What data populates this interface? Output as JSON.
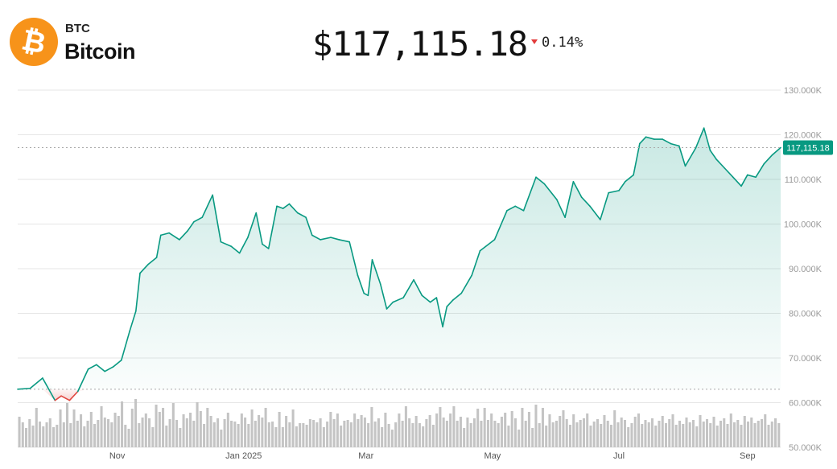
{
  "asset": {
    "ticker": "BTC",
    "name": "Bitcoin",
    "logo_color": "#F7931A",
    "logo_glyph": "₿",
    "price": "$117,115.18",
    "change": "0.14%",
    "change_direction": "down",
    "change_color": "#e23b3b"
  },
  "chart_data": {
    "type": "area",
    "title": "",
    "xlabel": "",
    "ylabel": "",
    "ylim": [
      50000,
      130000
    ],
    "y_ticks": [
      "50.000K",
      "60.000K",
      "70.000K",
      "80.000K",
      "90.000K",
      "100.000K",
      "110.000K",
      "120.000K",
      "130.000K"
    ],
    "x_ticks": [
      {
        "label": "Nov",
        "x": "2024-11-01"
      },
      {
        "label": "Jan 2025",
        "x": "2025-01-01"
      },
      {
        "label": "Mar",
        "x": "2025-03-01"
      },
      {
        "label": "May",
        "x": "2025-05-01"
      },
      {
        "label": "Jul",
        "x": "2025-07-01"
      },
      {
        "label": "Sep",
        "x": "2025-09-01"
      }
    ],
    "x_range": [
      "2024-09-14",
      "2025-09-17"
    ],
    "baseline": 63000,
    "last_value": 117115.18,
    "last_value_label": "117,115.18",
    "grid": true,
    "legend": "none",
    "colors": {
      "up": "#089981",
      "down": "#e0463f",
      "volume": "#c4c4c4",
      "label_bg": "#089981",
      "grid": "#e6e6e6"
    },
    "series": [
      {
        "x": [
          "2024-09-14",
          "2024-09-20",
          "2024-09-26",
          "2024-10-02",
          "2024-10-05",
          "2024-10-09",
          "2024-10-13",
          "2024-10-18",
          "2024-10-22",
          "2024-10-26",
          "2024-10-30",
          "2024-11-03",
          "2024-11-07",
          "2024-11-10",
          "2024-11-12",
          "2024-11-16",
          "2024-11-20",
          "2024-11-22",
          "2024-11-26",
          "2024-12-01",
          "2024-12-05",
          "2024-12-08",
          "2024-12-12",
          "2024-12-17",
          "2024-12-21",
          "2024-12-26",
          "2024-12-30",
          "2025-01-03",
          "2025-01-07",
          "2025-01-10",
          "2025-01-13",
          "2025-01-17",
          "2025-01-20",
          "2025-01-23",
          "2025-01-27",
          "2025-01-31",
          "2025-02-03",
          "2025-02-07",
          "2025-02-12",
          "2025-02-16",
          "2025-02-21",
          "2025-02-25",
          "2025-02-28",
          "2025-03-02",
          "2025-03-04",
          "2025-03-08",
          "2025-03-11",
          "2025-03-14",
          "2025-03-19",
          "2025-03-24",
          "2025-03-28",
          "2025-04-01",
          "2025-04-04",
          "2025-04-07",
          "2025-04-09",
          "2025-04-12",
          "2025-04-16",
          "2025-04-21",
          "2025-04-25",
          "2025-05-02",
          "2025-05-08",
          "2025-05-12",
          "2025-05-16",
          "2025-05-22",
          "2025-05-26",
          "2025-06-01",
          "2025-06-05",
          "2025-06-09",
          "2025-06-13",
          "2025-06-17",
          "2025-06-22",
          "2025-06-26",
          "2025-07-01",
          "2025-07-04",
          "2025-07-08",
          "2025-07-11",
          "2025-07-14",
          "2025-07-18",
          "2025-07-22",
          "2025-07-26",
          "2025-07-30",
          "2025-08-02",
          "2025-08-07",
          "2025-08-11",
          "2025-08-14",
          "2025-08-17",
          "2025-08-21",
          "2025-08-25",
          "2025-08-29",
          "2025-09-01",
          "2025-09-05",
          "2025-09-09",
          "2025-09-13",
          "2025-09-17"
        ],
        "values": [
          63000,
          63200,
          65500,
          60500,
          61500,
          60500,
          62500,
          67500,
          68500,
          67000,
          68000,
          69500,
          76000,
          80500,
          89000,
          91000,
          92500,
          97500,
          98000,
          96500,
          98500,
          100500,
          101500,
          106500,
          96000,
          95000,
          93500,
          97000,
          102500,
          95500,
          94500,
          104000,
          103500,
          104500,
          102500,
          101500,
          97500,
          96500,
          97000,
          96500,
          96000,
          88500,
          84500,
          84000,
          92000,
          86500,
          81000,
          82500,
          83500,
          87500,
          84000,
          82500,
          83500,
          77000,
          81500,
          83000,
          84500,
          88500,
          94000,
          96500,
          103000,
          104000,
          103000,
          110500,
          109000,
          105500,
          101500,
          109500,
          106000,
          104000,
          101000,
          107000,
          107500,
          109500,
          111000,
          118000,
          119500,
          119000,
          119000,
          118000,
          117500,
          113000,
          117000,
          121500,
          116500,
          114500,
          112500,
          110500,
          108500,
          111000,
          110500,
          113500,
          115500,
          117115.18
        ]
      }
    ],
    "volume": [
      38,
      31,
      24,
      35,
      27,
      49,
      32,
      26,
      31,
      36,
      25,
      28,
      47,
      31,
      55,
      30,
      47,
      33,
      41,
      26,
      33,
      44,
      29,
      34,
      51,
      37,
      35,
      31,
      43,
      39,
      57,
      28,
      23,
      48,
      60,
      30,
      37,
      42,
      36,
      25,
      53,
      44,
      49,
      27,
      35,
      55,
      34,
      24,
      41,
      36,
      43,
      33,
      56,
      45,
      29,
      49,
      39,
      31,
      36,
      22,
      35,
      43,
      33,
      32,
      29,
      42,
      37,
      29,
      47,
      33,
      40,
      37,
      49,
      31,
      32,
      25,
      44,
      25,
      39,
      31,
      47,
      26,
      30,
      30,
      28,
      35,
      34,
      31,
      36,
      25,
      32,
      44,
      35,
      42,
      27,
      33,
      34,
      31,
      42,
      35,
      40,
      37,
      30,
      50,
      32,
      36,
      25,
      43,
      29,
      22,
      31,
      42,
      33,
      51,
      36,
      30,
      39,
      30,
      26,
      35,
      40,
      28,
      42,
      50,
      37,
      33,
      42,
      51,
      33,
      38,
      24,
      37,
      30,
      36,
      48,
      33,
      49,
      34,
      42,
      33,
      30,
      38,
      43,
      27,
      45,
      36,
      22,
      49,
      33,
      44,
      24,
      53,
      30,
      49,
      27,
      41,
      31,
      33,
      39,
      46,
      35,
      28,
      41,
      31,
      34,
      36,
      42,
      27,
      32,
      35,
      29,
      40,
      33,
      28,
      46,
      31,
      37,
      34,
      25,
      30,
      38,
      42,
      29,
      34,
      31,
      36,
      27,
      33,
      39,
      30,
      35,
      41,
      28,
      33,
      29,
      37,
      31,
      34,
      26,
      40,
      32,
      35,
      30,
      38,
      27,
      33,
      36,
      29,
      42,
      31,
      34,
      28,
      39,
      32,
      37,
      30,
      33,
      35,
      41,
      28,
      32,
      36,
      30
    ]
  }
}
